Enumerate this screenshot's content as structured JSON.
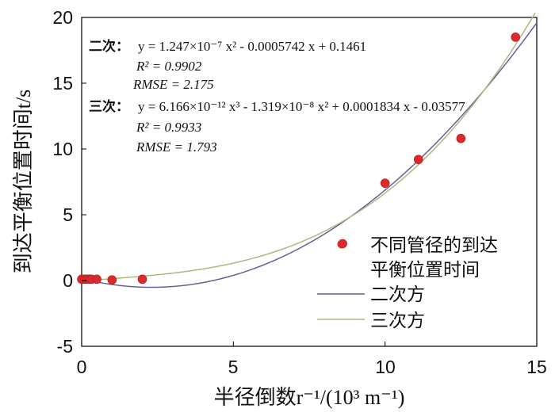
{
  "chart_data": {
    "type": "scatter",
    "xlabel": "半径倒数r⁻¹/(10³ m⁻¹)",
    "ylabel": "到达平衡位置时间t/s",
    "xlim": [
      0,
      15
    ],
    "ylim": [
      -5,
      20
    ],
    "xticks": [
      "0",
      "5",
      "10",
      "15"
    ],
    "yticks": [
      "-5",
      "0",
      "5",
      "10",
      "15",
      "20"
    ],
    "grid": false,
    "legend_position": "bottom-right",
    "series": [
      {
        "name": "不同管径的到达平衡位置时间",
        "kind": "points",
        "color": "#d92b2b",
        "x": [
          0.0,
          0.1,
          0.17,
          0.25,
          0.33,
          0.5,
          1.0,
          2.0,
          8.6,
          10.0,
          11.1,
          12.5,
          14.3
        ],
        "y": [
          0.1,
          0.1,
          0.1,
          0.1,
          0.1,
          0.1,
          0.05,
          0.1,
          2.8,
          7.4,
          9.2,
          10.8,
          18.5
        ]
      },
      {
        "name": "二次方",
        "kind": "curve",
        "color": "#6a5d98",
        "coefficients": [
          0.1461,
          -0.5742,
          0.1247
        ]
      },
      {
        "name": "三次方",
        "kind": "curve",
        "color": "#a9ba7e",
        "coefficients": [
          -0.03577,
          0.1834,
          -0.01319,
          0.006166
        ]
      }
    ],
    "annotations": {
      "quadratic": {
        "prefix": "二次：",
        "equation": "y = 1.247×10⁻⁷ x² - 0.0005742 x + 0.1461",
        "r2": "R² = 0.9902",
        "rmse": "RMSE = 2.175"
      },
      "cubic": {
        "prefix": "三次：",
        "equation": "y = 6.166×10⁻¹² x³ - 1.319×10⁻⁸ x² + 0.0001834 x - 0.03577",
        "r2": "R² = 0.9933",
        "rmse": "RMSE = 1.793"
      }
    },
    "legend": {
      "points_line1": "不同管径的到达",
      "points_line2": "平衡位置时间",
      "quadratic": "二次方",
      "cubic": "三次方"
    }
  }
}
